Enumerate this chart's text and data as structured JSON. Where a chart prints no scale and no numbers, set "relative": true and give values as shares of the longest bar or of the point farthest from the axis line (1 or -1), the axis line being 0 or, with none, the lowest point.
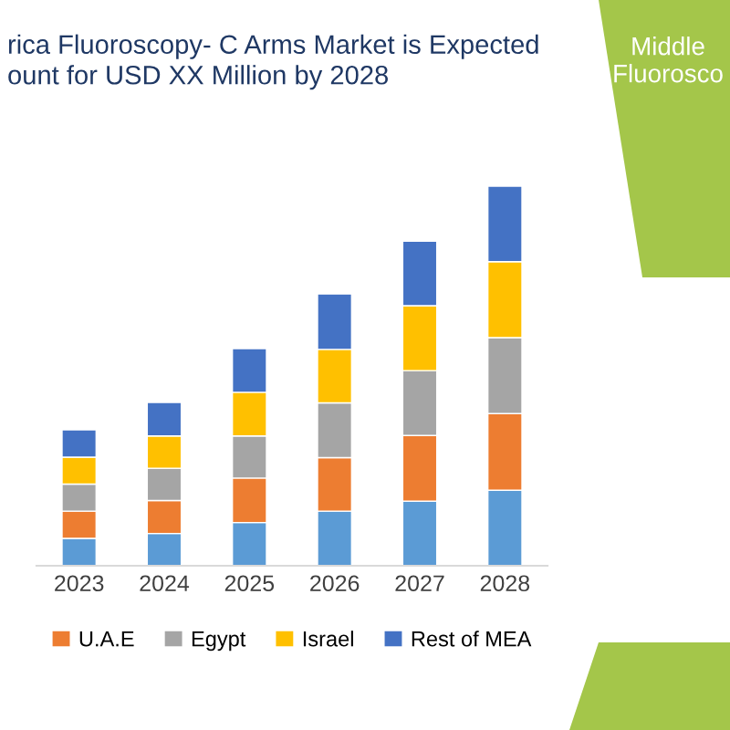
{
  "chart_data": {
    "type": "bar",
    "stacked": true,
    "relative": true,
    "title": "rica Fluoroscopy- C Arms Market is Expected\nount for USD XX Million by 2028",
    "annotations": [
      "Middle\nFluorosco"
    ],
    "categories": [
      "2023",
      "2024",
      "2025",
      "2026",
      "2027",
      "2028"
    ],
    "legend": "bottom",
    "series": [
      {
        "color": "#5b9bd5",
        "values": [
          0.072,
          0.085,
          0.114,
          0.144,
          0.17,
          0.199
        ]
      },
      {
        "name": "U.A.E",
        "color": "#ed7d31",
        "values": [
          0.072,
          0.087,
          0.117,
          0.141,
          0.173,
          0.202
        ]
      },
      {
        "name": "Egypt",
        "color": "#a5a5a5",
        "values": [
          0.071,
          0.085,
          0.111,
          0.144,
          0.171,
          0.2
        ]
      },
      {
        "name": "Israel",
        "color": "#ffc000",
        "values": [
          0.071,
          0.085,
          0.115,
          0.141,
          0.171,
          0.2
        ]
      },
      {
        "name": "Rest of MEA",
        "color": "#4472c4",
        "values": [
          0.072,
          0.088,
          0.115,
          0.146,
          0.17,
          0.199
        ]
      }
    ]
  }
}
